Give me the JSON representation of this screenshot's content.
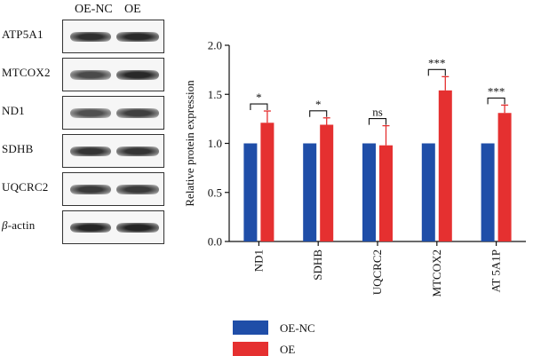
{
  "blot": {
    "lanes": [
      "OE-NC",
      "OE"
    ],
    "rows": [
      {
        "label": "ATP5A1",
        "nc": 0.85,
        "oe": 0.9
      },
      {
        "label": "MTCOX2",
        "nc": 0.6,
        "oe": 0.9
      },
      {
        "label": "ND1",
        "nc": 0.55,
        "oe": 0.7
      },
      {
        "label": "SDHB",
        "nc": 0.8,
        "oe": 0.8
      },
      {
        "label": "UQCRC2",
        "nc": 0.75,
        "oe": 0.75
      },
      {
        "label_greek": "β",
        "label_rest": "-actin",
        "nc": 0.95,
        "oe": 0.95
      }
    ]
  },
  "chart_data": {
    "type": "bar",
    "ylabel": "Relative protein expression",
    "ylim": [
      0,
      2.0
    ],
    "yticks": [
      "0.0",
      "0.5",
      "1.0",
      "1.5",
      "2.0"
    ],
    "categories": [
      "ND1",
      "SDHB",
      "UQCRC2",
      "MTCOX2",
      "AT 5A1P"
    ],
    "series": [
      {
        "name": "OE-NC",
        "color": "#1f4ea8",
        "values": [
          1.0,
          1.0,
          1.0,
          1.0,
          1.0
        ],
        "errors": [
          0,
          0,
          0,
          0,
          0
        ]
      },
      {
        "name": "OE",
        "color": "#e53030",
        "values": [
          1.21,
          1.19,
          0.98,
          1.54,
          1.31
        ],
        "errors": [
          0.12,
          0.07,
          0.2,
          0.14,
          0.08
        ]
      }
    ],
    "significance": [
      "*",
      "*",
      "ns",
      "***",
      "***"
    ],
    "legend_position": "bottom-left",
    "grid": false
  }
}
